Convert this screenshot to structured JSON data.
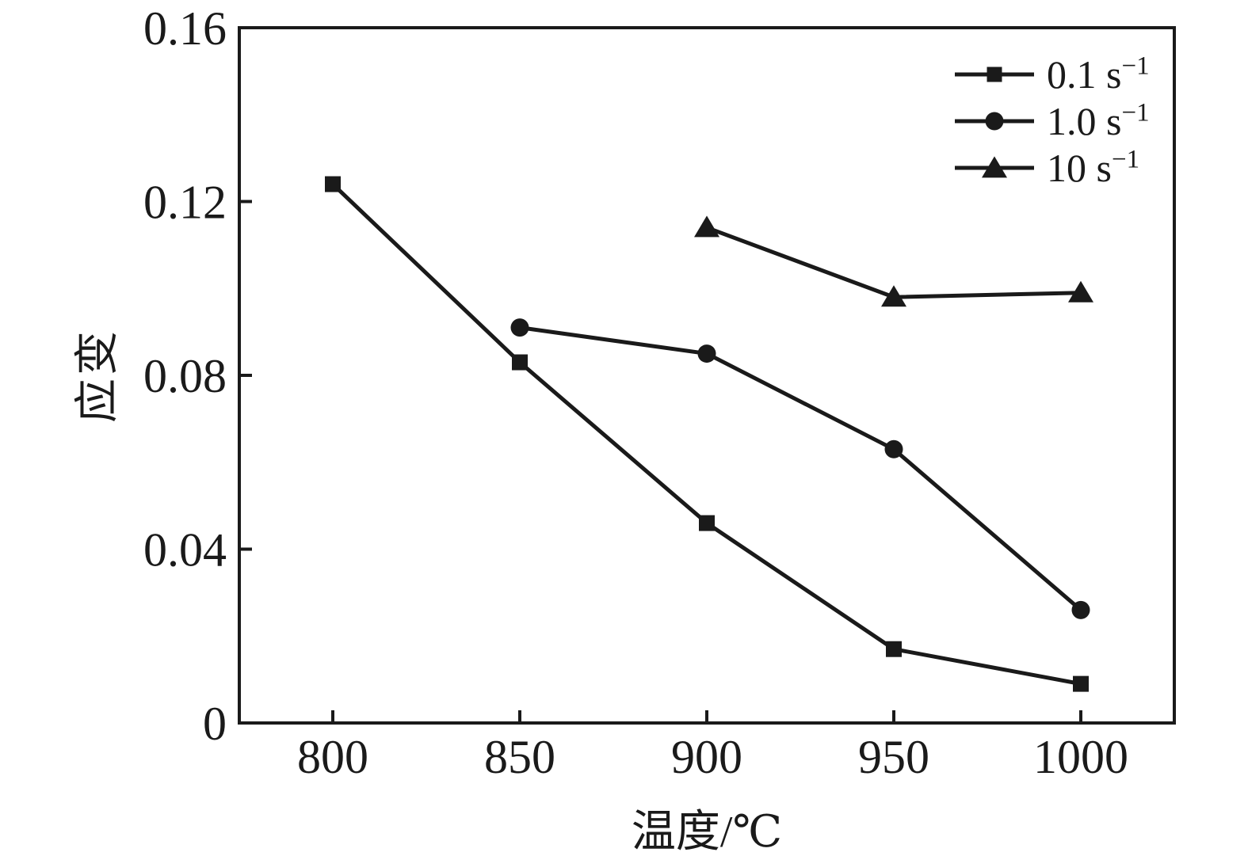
{
  "chart_data": {
    "type": "line",
    "title": "",
    "xlabel": "温度/℃",
    "ylabel": "应变",
    "xlim": [
      775,
      1025
    ],
    "ylim": [
      0,
      0.16
    ],
    "x_ticks": [
      800,
      850,
      900,
      950,
      1000
    ],
    "x_tick_labels": [
      "800",
      "850",
      "900",
      "950",
      "1000"
    ],
    "y_ticks": [
      0,
      0.04,
      0.08,
      0.12,
      0.16
    ],
    "y_tick_labels": [
      "0",
      "0.04",
      "0.08",
      "0.12",
      "0.16"
    ],
    "grid": false,
    "legend_position": "top-right-inside",
    "color": "#1a1a1a",
    "background": "#ffffff",
    "series": [
      {
        "name": "0.1 s⁻¹",
        "legend_base": "0.1 s",
        "legend_sup": "−1",
        "marker": "square",
        "x": [
          800,
          850,
          900,
          950,
          1000
        ],
        "y": [
          0.124,
          0.083,
          0.046,
          0.017,
          0.009
        ]
      },
      {
        "name": "1.0 s⁻¹",
        "legend_base": "1.0 s",
        "legend_sup": "−1",
        "marker": "circle",
        "x": [
          850,
          900,
          950,
          1000
        ],
        "y": [
          0.091,
          0.085,
          0.063,
          0.026
        ]
      },
      {
        "name": "10 s⁻¹",
        "legend_base": "10 s",
        "legend_sup": "−1",
        "marker": "triangle",
        "x": [
          900,
          950,
          1000
        ],
        "y": [
          0.114,
          0.098,
          0.099
        ]
      }
    ]
  }
}
